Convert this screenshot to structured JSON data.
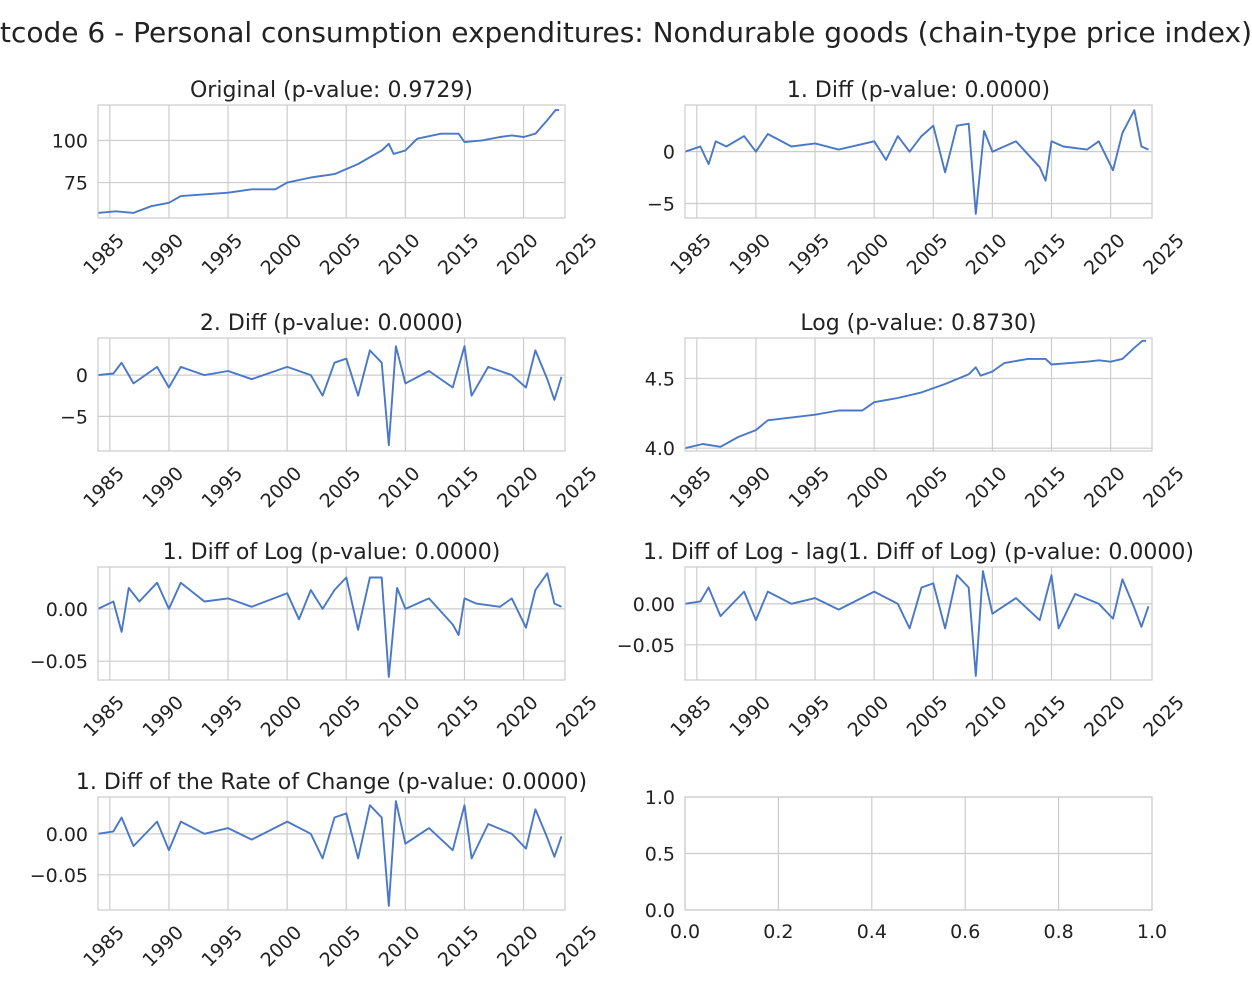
{
  "title": "tcode 6 - Personal consumption expenditures: Nondurable goods (chain-type price index)",
  "colors": {
    "line": "#4a78c8",
    "grid": "#cccccc",
    "text": "#222222"
  },
  "chart_data": [
    {
      "type": "line",
      "title": "Original (p-value: 0.9729)",
      "x": [
        1984,
        1985.5,
        1987,
        1988.5,
        1990,
        1991,
        1995,
        1997,
        1999,
        2000,
        2002,
        2004,
        2006,
        2008,
        2008.6,
        2009,
        2010,
        2011,
        2013,
        2014.5,
        2015,
        2016.5,
        2018,
        2019,
        2020,
        2021,
        2022,
        2022.7,
        2023
      ],
      "series": [
        {
          "values": [
            57,
            58,
            57,
            61,
            63,
            67,
            69,
            71,
            71,
            75,
            78,
            80,
            86,
            94,
            98,
            92,
            94,
            101,
            104,
            104,
            99,
            100,
            102,
            103,
            102,
            104,
            112,
            118,
            118
          ]
        }
      ],
      "xticks": [
        "1985",
        "1990",
        "1995",
        "2000",
        "2005",
        "2010",
        "2015",
        "2020",
        "2025"
      ],
      "yticks": [
        "75",
        "100"
      ],
      "xlim": [
        1984,
        2023.5
      ],
      "ylim": [
        54,
        121
      ],
      "grid": true
    },
    {
      "type": "line",
      "title": "1. Diff (p-value: 0.0000)",
      "x": [
        1984,
        1985.3,
        1986,
        1986.6,
        1987.5,
        1989,
        1990,
        1991,
        1993,
        1995,
        1997,
        2000,
        2001,
        2002,
        2003,
        2004,
        2005,
        2006,
        2007,
        2008,
        2008.6,
        2009.3,
        2010,
        2012,
        2014,
        2014.5,
        2015,
        2016,
        2018,
        2019,
        2020.2,
        2021,
        2022,
        2022.6,
        2023.2
      ],
      "series": [
        {
          "values": [
            0,
            0.5,
            -1.2,
            1.0,
            0.5,
            1.5,
            0,
            1.7,
            0.5,
            0.8,
            0.2,
            1.0,
            -0.8,
            1.5,
            0,
            1.5,
            2.5,
            -2.0,
            2.5,
            2.7,
            -6.0,
            2.0,
            0,
            1.0,
            -1.5,
            -2.8,
            1.0,
            0.5,
            0.2,
            1.0,
            -1.8,
            1.8,
            4.0,
            0.5,
            0.2
          ]
        }
      ],
      "xticks": [
        "1985",
        "1990",
        "1995",
        "2000",
        "2005",
        "2010",
        "2015",
        "2020",
        "2025"
      ],
      "yticks": [
        "−5",
        "0"
      ],
      "xlim": [
        1984,
        2023.5
      ],
      "ylim": [
        -6.4,
        4.5
      ],
      "grid": true
    },
    {
      "type": "line",
      "title": "2. Diff (p-value: 0.0000)",
      "x": [
        1984,
        1985.3,
        1986,
        1987,
        1989,
        1990,
        1991,
        1993,
        1995,
        1997,
        2000,
        2002,
        2003,
        2004,
        2005,
        2006,
        2007,
        2008,
        2008.6,
        2009.2,
        2010,
        2012,
        2014,
        2015,
        2015.6,
        2017,
        2019,
        2020.2,
        2021,
        2022,
        2022.6,
        2023.2
      ],
      "series": [
        {
          "values": [
            0,
            0.2,
            1.5,
            -1.0,
            1.0,
            -1.5,
            1.0,
            0,
            0.5,
            -0.5,
            1.0,
            0,
            -2.5,
            1.5,
            2.0,
            -2.5,
            3.0,
            1.5,
            -8.5,
            3.5,
            -1.0,
            0.5,
            -1.5,
            3.5,
            -2.5,
            1.0,
            0,
            -1.5,
            3.0,
            -0.5,
            -3.0,
            -0.2
          ]
        }
      ],
      "xticks": [
        "1985",
        "1990",
        "1995",
        "2000",
        "2005",
        "2010",
        "2015",
        "2020",
        "2025"
      ],
      "yticks": [
        "−5",
        "0"
      ],
      "xlim": [
        1984,
        2023.5
      ],
      "ylim": [
        -9.2,
        4.5
      ],
      "grid": true
    },
    {
      "type": "line",
      "title": "Log (p-value: 0.8730)",
      "x": [
        1984,
        1985.5,
        1987,
        1988.5,
        1990,
        1991,
        1995,
        1997,
        1999,
        2000,
        2002,
        2004,
        2006,
        2008,
        2008.6,
        2009,
        2010,
        2011,
        2013,
        2014.5,
        2015,
        2016.5,
        2018,
        2019,
        2020,
        2021,
        2022,
        2022.7,
        2023
      ],
      "series": [
        {
          "values": [
            4.0,
            4.03,
            4.01,
            4.08,
            4.13,
            4.2,
            4.24,
            4.27,
            4.27,
            4.33,
            4.36,
            4.4,
            4.46,
            4.53,
            4.58,
            4.52,
            4.55,
            4.61,
            4.64,
            4.64,
            4.6,
            4.61,
            4.62,
            4.63,
            4.62,
            4.64,
            4.72,
            4.77,
            4.77
          ]
        }
      ],
      "xticks": [
        "1985",
        "1990",
        "1995",
        "2000",
        "2005",
        "2010",
        "2015",
        "2020",
        "2025"
      ],
      "yticks": [
        "4.0",
        "4.5"
      ],
      "xlim": [
        1984,
        2023.5
      ],
      "ylim": [
        3.98,
        4.79
      ],
      "grid": true
    },
    {
      "type": "line",
      "title": "1. Diff of Log (p-value: 0.0000)",
      "x": [
        1984,
        1985.3,
        1986,
        1986.6,
        1987.5,
        1989,
        1990,
        1991,
        1993,
        1995,
        1997,
        2000,
        2001,
        2002,
        2003,
        2004,
        2005,
        2006,
        2007,
        2008,
        2008.6,
        2009.3,
        2010,
        2012,
        2014,
        2014.5,
        2015,
        2016,
        2018,
        2019,
        2020.2,
        2021,
        2022,
        2022.6,
        2023.2
      ],
      "series": [
        {
          "values": [
            0,
            0.007,
            -0.022,
            0.02,
            0.007,
            0.025,
            0,
            0.025,
            0.007,
            0.01,
            0.002,
            0.015,
            -0.01,
            0.018,
            0,
            0.018,
            0.03,
            -0.02,
            0.03,
            0.03,
            -0.065,
            0.02,
            0,
            0.01,
            -0.015,
            -0.025,
            0.01,
            0.005,
            0.002,
            0.01,
            -0.018,
            0.018,
            0.034,
            0.005,
            0.002
          ]
        }
      ],
      "xticks": [
        "1985",
        "1990",
        "1995",
        "2000",
        "2005",
        "2010",
        "2015",
        "2020",
        "2025"
      ],
      "yticks": [
        "−0.05",
        "0.00"
      ],
      "xlim": [
        1984,
        2023.5
      ],
      "ylim": [
        -0.068,
        0.04
      ],
      "grid": true
    },
    {
      "type": "line",
      "title": "1. Diff of Log - lag(1. Diff of Log) (p-value: 0.0000)",
      "x": [
        1984,
        1985.3,
        1986,
        1987,
        1989,
        1990,
        1991,
        1993,
        1995,
        1997,
        2000,
        2002,
        2003,
        2004,
        2005,
        2006,
        2007,
        2008,
        2008.6,
        2009.2,
        2010,
        2012,
        2014,
        2015,
        2015.6,
        2017,
        2019,
        2020.2,
        2021,
        2022,
        2022.6,
        2023.2
      ],
      "series": [
        {
          "values": [
            0,
            0.003,
            0.02,
            -0.015,
            0.015,
            -0.02,
            0.015,
            0,
            0.007,
            -0.007,
            0.015,
            0,
            -0.03,
            0.02,
            0.025,
            -0.03,
            0.035,
            0.02,
            -0.088,
            0.04,
            -0.012,
            0.007,
            -0.02,
            0.035,
            -0.03,
            0.012,
            0,
            -0.018,
            0.03,
            -0.005,
            -0.028,
            -0.003
          ]
        }
      ],
      "xticks": [
        "1985",
        "1990",
        "1995",
        "2000",
        "2005",
        "2010",
        "2015",
        "2020",
        "2025"
      ],
      "yticks": [
        "−0.05",
        "0.00"
      ],
      "xlim": [
        1984,
        2023.5
      ],
      "ylim": [
        -0.093,
        0.045
      ],
      "grid": true
    },
    {
      "type": "line",
      "title": "1. Diff of the Rate of Change (p-value: 0.0000)",
      "x": [
        1984,
        1985.3,
        1986,
        1987,
        1989,
        1990,
        1991,
        1993,
        1995,
        1997,
        2000,
        2002,
        2003,
        2004,
        2005,
        2006,
        2007,
        2008,
        2008.6,
        2009.2,
        2010,
        2012,
        2014,
        2015,
        2015.6,
        2017,
        2019,
        2020.2,
        2021,
        2022,
        2022.6,
        2023.2
      ],
      "series": [
        {
          "values": [
            0,
            0.003,
            0.02,
            -0.015,
            0.015,
            -0.02,
            0.015,
            0,
            0.007,
            -0.007,
            0.015,
            0,
            -0.03,
            0.02,
            0.025,
            -0.03,
            0.035,
            0.02,
            -0.088,
            0.04,
            -0.012,
            0.007,
            -0.02,
            0.035,
            -0.03,
            0.012,
            0,
            -0.018,
            0.03,
            -0.005,
            -0.028,
            -0.003
          ]
        }
      ],
      "xticks": [
        "1985",
        "1990",
        "1995",
        "2000",
        "2005",
        "2010",
        "2015",
        "2020",
        "2025"
      ],
      "yticks": [
        "−0.05",
        "0.00"
      ],
      "xlim": [
        1984,
        2023.5
      ],
      "ylim": [
        -0.093,
        0.045
      ],
      "grid": true
    },
    {
      "type": "line",
      "title": "",
      "x": [],
      "series": [],
      "xticks": [
        "0.0",
        "0.2",
        "0.4",
        "0.6",
        "0.8",
        "1.0"
      ],
      "yticks": [
        "0.0",
        "0.5",
        "1.0"
      ],
      "xlim": [
        0,
        1
      ],
      "ylim": [
        0,
        1
      ],
      "grid": true
    }
  ]
}
